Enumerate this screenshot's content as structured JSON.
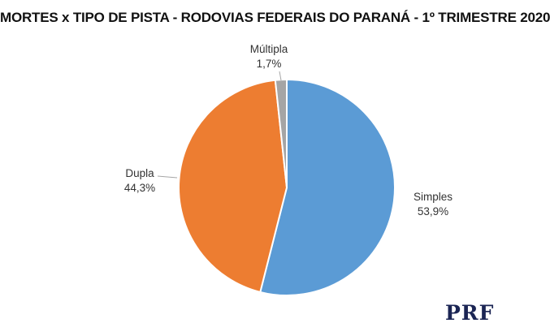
{
  "chart_data": {
    "type": "pie",
    "title": "MORTES x TIPO DE PISTA - RODOVIAS FEDERAIS DO PARANÁ - 1º TRIMESTRE 2020",
    "categories": [
      "Simples",
      "Dupla",
      "Múltipla"
    ],
    "values": [
      53.9,
      44.3,
      1.7
    ],
    "value_labels": [
      "53,9%",
      "44,3%",
      "1,7%"
    ],
    "colors": [
      "#5b9bd5",
      "#ed7d31",
      "#a5a5a5"
    ],
    "start_angle_deg": 0,
    "direction": "clockwise"
  },
  "logo": {
    "text": "PRF"
  }
}
